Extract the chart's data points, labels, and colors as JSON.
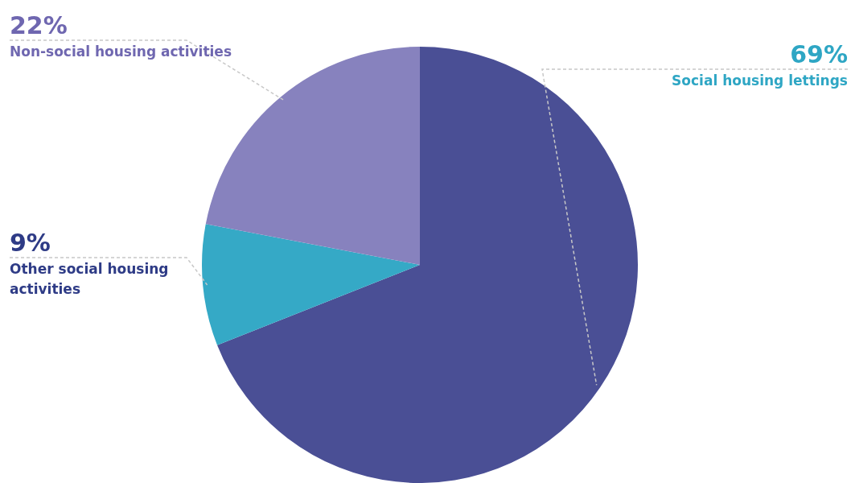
{
  "chart_data": {
    "type": "pie",
    "categories": [
      "Social housing lettings",
      "Other social housing activities",
      "Non-social housing activities"
    ],
    "values": [
      69,
      9,
      22
    ],
    "value_labels": [
      "69%",
      "9%",
      "22%"
    ],
    "colors": [
      "#4a4f95",
      "#35a9c6",
      "#8782be"
    ],
    "legend": false
  }
}
